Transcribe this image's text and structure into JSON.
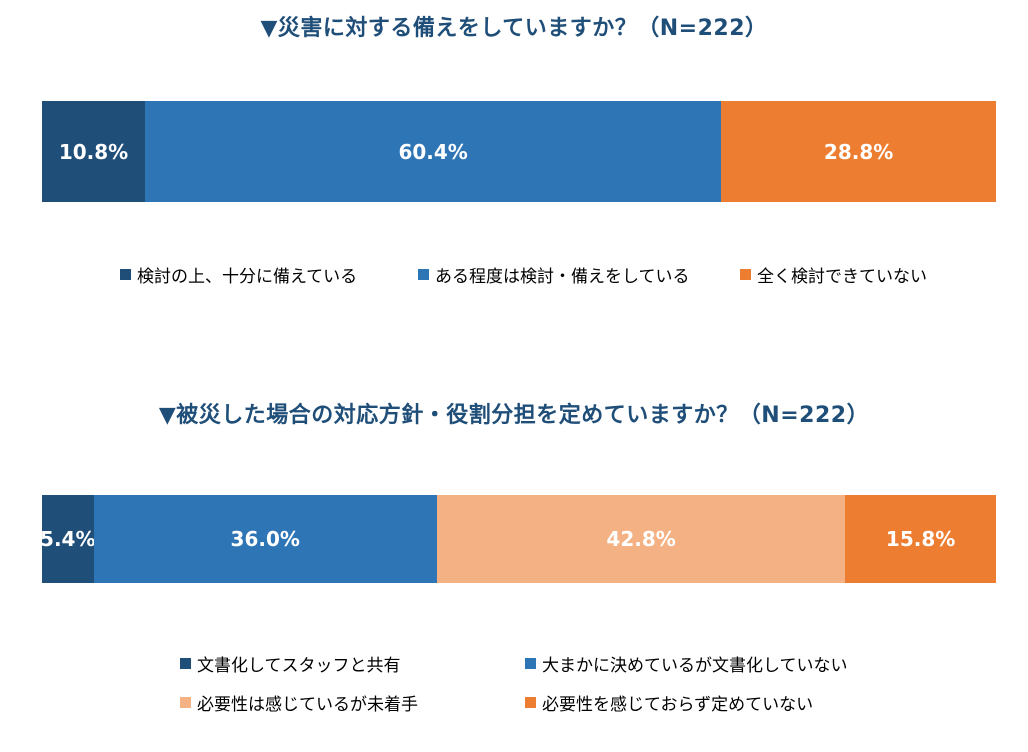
{
  "chart_data": [
    {
      "type": "bar",
      "orientation": "horizontal-stacked-100",
      "title": "▼災害に対する備えをしていますか？（N=222）",
      "series": [
        {
          "name": "検討の上、十分に備えている",
          "values": [
            10.8
          ],
          "label": "10.8%",
          "color": "#1f4e79"
        },
        {
          "name": "ある程度は検討・備えをしている",
          "values": [
            60.4
          ],
          "label": "60.4%",
          "color": "#2e75b6"
        },
        {
          "name": "全く検討できていない",
          "values": [
            28.8
          ],
          "label": "28.8%",
          "color": "#ed7d31"
        }
      ],
      "legend_position": "bottom"
    },
    {
      "type": "bar",
      "orientation": "horizontal-stacked-100",
      "title": "▼被災した場合の対応方針・役割分担を定めていますか？（N=222）",
      "series": [
        {
          "name": "文書化してスタッフと共有",
          "values": [
            5.4
          ],
          "label": "5.4%",
          "color": "#1f4e79"
        },
        {
          "name": "大まかに決めているが文書化していない",
          "values": [
            36.0
          ],
          "label": "36.0%",
          "color": "#2e75b6"
        },
        {
          "name": "必要性は感じているが未着手",
          "values": [
            42.8
          ],
          "label": "42.8%",
          "color": "#f4b183"
        },
        {
          "name": "必要性を感じておらず定めていない",
          "values": [
            15.8
          ],
          "label": "15.8%",
          "color": "#ed7d31"
        }
      ],
      "legend_position": "bottom"
    }
  ]
}
